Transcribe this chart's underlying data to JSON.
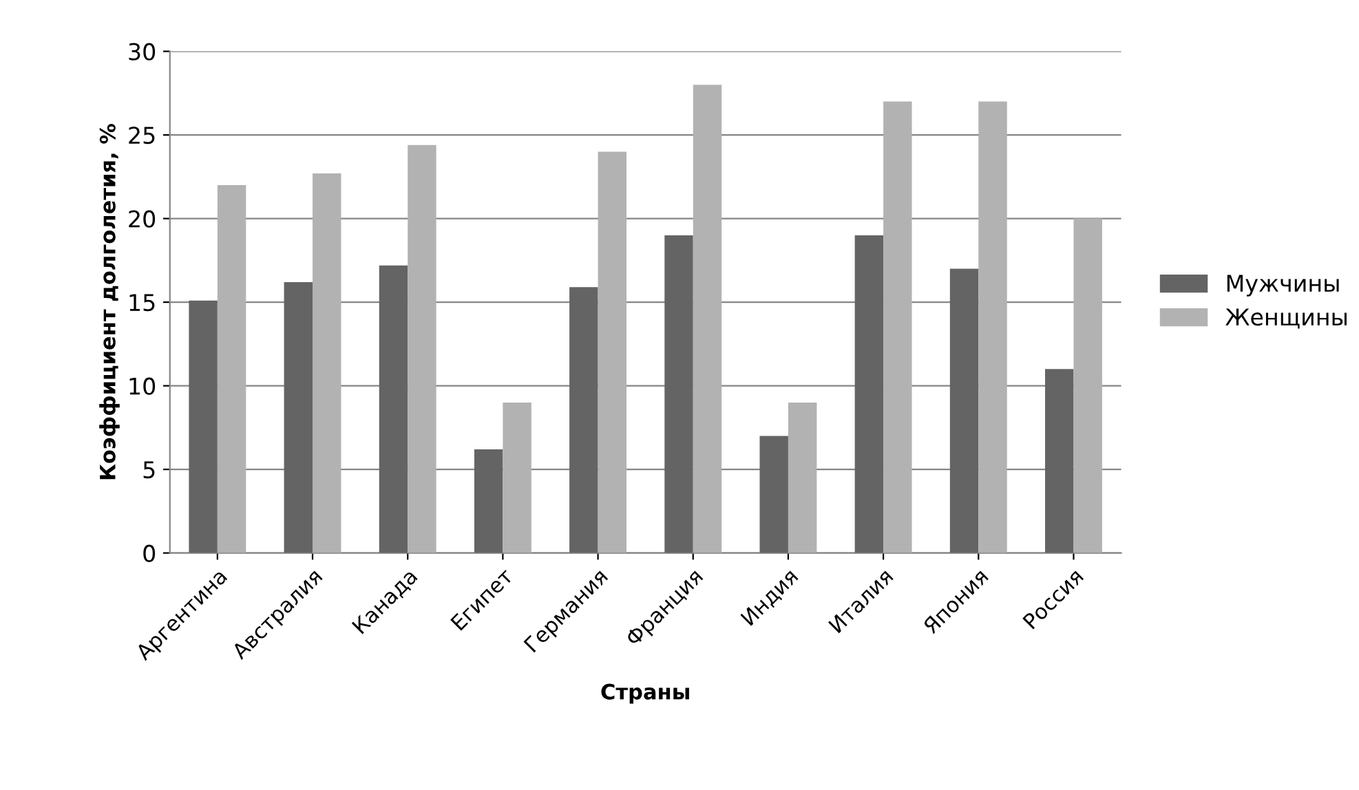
{
  "chart_data": {
    "type": "bar",
    "xlabel": "Страны",
    "ylabel": "Коэффициент долголетия, %",
    "categories": [
      "Аргентина",
      "Австралия",
      "Канада",
      "Египет",
      "Германия",
      "Франция",
      "Индия",
      "Италия",
      "Япония",
      "Россия"
    ],
    "series": [
      {
        "name": "Мужчины",
        "color": "#646464",
        "values": [
          15.1,
          16.2,
          17.2,
          6.2,
          15.9,
          19,
          7,
          19,
          17,
          11
        ]
      },
      {
        "name": "Женщины",
        "color": "#b2b2b2",
        "values": [
          22,
          22.7,
          24.4,
          9,
          24,
          28,
          9,
          27,
          27,
          20
        ]
      }
    ],
    "ylim": [
      0,
      30
    ],
    "yticks": [
      0,
      5,
      10,
      15,
      20,
      25,
      30
    ],
    "grid": "y",
    "legend": "right"
  }
}
